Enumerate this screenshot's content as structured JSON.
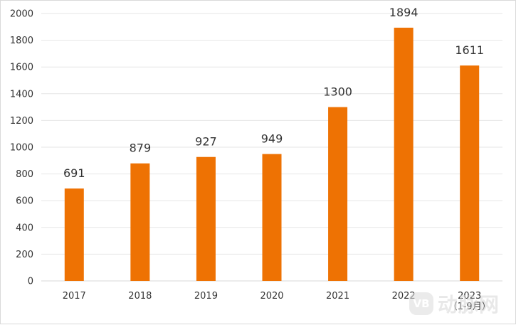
{
  "chart_data": {
    "type": "bar",
    "title": "",
    "xlabel": "",
    "ylabel": "",
    "categories": [
      "2017",
      "2018",
      "2019",
      "2020",
      "2021",
      "2022",
      "2023\n（1-9月）"
    ],
    "values": [
      691,
      879,
      927,
      949,
      1300,
      1894,
      1611
    ],
    "value_labels": [
      "691",
      "879",
      "927",
      "949",
      "1300",
      "1894",
      "1611"
    ],
    "ylim": [
      0,
      2000
    ],
    "yticks": [
      0,
      200,
      400,
      600,
      800,
      1000,
      1200,
      1400,
      1600,
      1800,
      2000
    ],
    "grid": true,
    "legend": "none",
    "colors": {
      "bar": "#ee7203",
      "grid": "#e6e6e6",
      "axis": "#d9d9d9",
      "text": "#333333"
    }
  },
  "watermark": {
    "badge": "VB",
    "text": "动脉网"
  }
}
